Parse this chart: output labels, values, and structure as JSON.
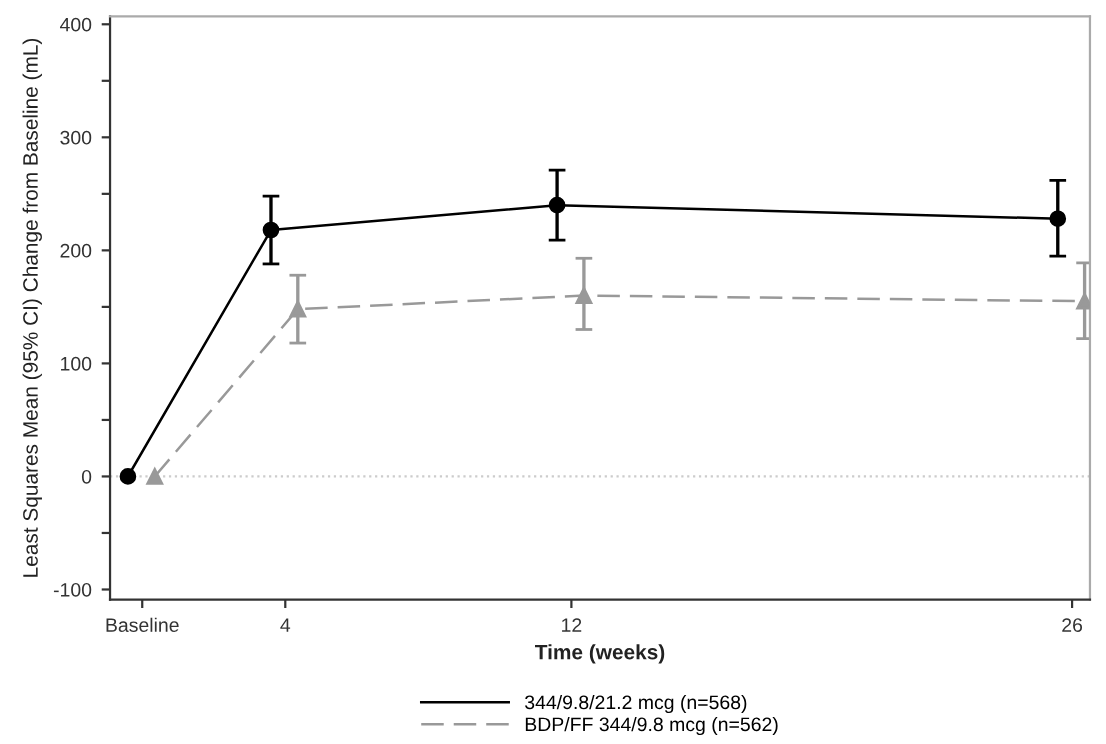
{
  "chart_data": {
    "type": "line",
    "xlabel": "Time (weeks)",
    "ylabel": "Least Squares Mean (95% CI) Change from Baseline (mL)",
    "xlim": [
      -0.9,
      26.5
    ],
    "xticks": [
      {
        "value": 0,
        "label": "Baseline"
      },
      4,
      12,
      26
    ],
    "ylim": [
      -109,
      407
    ],
    "yticks": [
      -100,
      {
        "value": -50,
        "label": null
      },
      0,
      {
        "value": 50,
        "label": null
      },
      100,
      {
        "value": 150,
        "label": null
      },
      200,
      {
        "value": 250,
        "label": null
      },
      300,
      {
        "value": 350,
        "label": null
      },
      400
    ],
    "grid": false,
    "legend": "bottom",
    "ref_lines": [
      {
        "axis": "y",
        "value": 0,
        "color": "#cccccc",
        "line_style": "dotted"
      }
    ],
    "series": [
      {
        "name": "344/9.8/21.2 mcg (n=568)",
        "color": "#000000",
        "marker": "circle",
        "line_style": "solid",
        "x": [
          -0.4,
          3.6,
          11.6,
          25.6
        ],
        "values": [
          0,
          218,
          240,
          228
        ],
        "errors": [
          null,
          [
            188,
            248
          ],
          [
            209,
            271
          ],
          [
            195,
            262
          ]
        ]
      },
      {
        "name": "BDP/FF 344/9.8 mcg (n=562)",
        "color": "#999999",
        "marker": "triangle",
        "line_style": "dashed",
        "x": [
          0.35,
          4.35,
          12.35,
          26.35
        ],
        "values": [
          0,
          148,
          160,
          155
        ],
        "errors": [
          null,
          [
            118,
            178
          ],
          [
            130,
            193
          ],
          [
            122,
            189
          ]
        ]
      }
    ]
  }
}
